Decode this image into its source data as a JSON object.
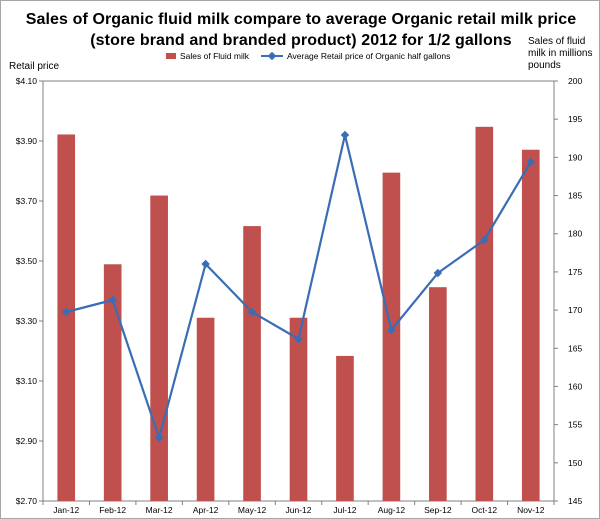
{
  "chart_data": {
    "type": "bar",
    "title_lines": [
      "Sales of Organic fluid milk compare to average Organic retail milk price",
      "(store brand and branded product) 2012  for 1/2 gallons"
    ],
    "left_axis_title": "Retail price",
    "right_axis_title_lines": [
      "Sales of fluid",
      "milk in millions",
      "pounds"
    ],
    "categories": [
      "Jan-12",
      "Feb-12",
      "Mar-12",
      "Apr-12",
      "May-12",
      "Jun-12",
      "Jul-12",
      "Aug-12",
      "Sep-12",
      "Oct-12",
      "Nov-12"
    ],
    "left_axis": {
      "min": 2.7,
      "max": 4.1,
      "ticks": [
        "$2.70",
        "$2.90",
        "$3.10",
        "$3.30",
        "$3.50",
        "$3.70",
        "$3.90",
        "$4.10"
      ]
    },
    "right_axis": {
      "min": 145,
      "max": 200,
      "ticks": [
        "145",
        "150",
        "155",
        "160",
        "165",
        "170",
        "175",
        "180",
        "185",
        "190",
        "195",
        "200"
      ]
    },
    "series": [
      {
        "name": "Sales of Fluid milk",
        "kind": "bar",
        "axis": "right",
        "color": "#c0504d",
        "values": [
          193.0,
          176.0,
          185.0,
          169.0,
          181.0,
          169.0,
          164.0,
          188.0,
          173.0,
          194.0,
          191.0
        ]
      },
      {
        "name": "Average Retail price of Organic half gallons",
        "kind": "line",
        "axis": "left",
        "color": "#3a6db5",
        "values": [
          3.33,
          3.37,
          2.91,
          3.49,
          3.33,
          3.24,
          3.92,
          3.27,
          3.46,
          3.57,
          3.83
        ]
      }
    ],
    "grid": false,
    "legend_position": "top"
  }
}
